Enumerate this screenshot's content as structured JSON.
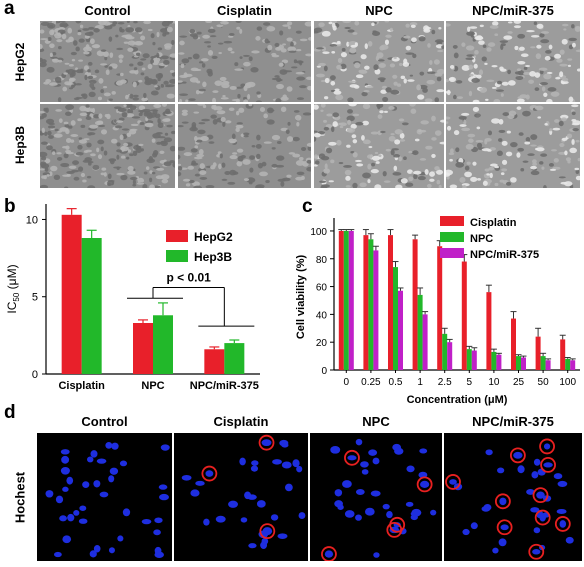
{
  "panels": {
    "a": {
      "label": "a",
      "columns": [
        "Control",
        "Cisplatin",
        "NPC",
        "NPC/miR-375"
      ],
      "rows": [
        "HepG2",
        "Hep3B"
      ]
    },
    "b": {
      "label": "b",
      "annotation": "p < 0.01"
    },
    "c": {
      "label": "c"
    },
    "d": {
      "label": "d",
      "columns": [
        "Control",
        "Cisplatin",
        "NPC",
        "NPC/miR-375"
      ],
      "row": "Hochest"
    }
  },
  "chart_data": [
    {
      "type": "bar",
      "panel": "b",
      "ylabel_main": "IC",
      "ylabel_sub": "50",
      "ylabel_unit": " (μM)",
      "categories": [
        "Cisplatin",
        "NPC",
        "NPC/miR-375"
      ],
      "series": [
        {
          "name": "HepG2",
          "values": [
            10.3,
            3.3,
            1.6
          ],
          "errors": [
            0.4,
            0.2,
            0.15
          ],
          "color": "#e8202a"
        },
        {
          "name": "Hep3B",
          "values": [
            8.8,
            3.8,
            2.0
          ],
          "errors": [
            0.5,
            0.8,
            0.2
          ],
          "color": "#22b82a"
        }
      ],
      "ylim": [
        0,
        11
      ],
      "yticks": [
        "0",
        "5",
        "10"
      ],
      "legend": "top-right"
    },
    {
      "type": "bar",
      "panel": "c",
      "xlabel": "Concentration (μM)",
      "ylabel": "Cell viability (%)",
      "categories": [
        "0",
        "0.25",
        "0.5",
        "1",
        "2.5",
        "5",
        "10",
        "25",
        "50",
        "100"
      ],
      "series": [
        {
          "name": "Cisplatin",
          "values": [
            100,
            97,
            97,
            94,
            89,
            78,
            56,
            37,
            24,
            22
          ],
          "errors": [
            1,
            4,
            4,
            3,
            4,
            5,
            5,
            5,
            6,
            3
          ],
          "color": "#e8202a"
        },
        {
          "name": "NPC",
          "values": [
            100,
            94,
            74,
            54,
            26,
            15,
            13,
            10,
            10,
            8
          ],
          "errors": [
            1,
            4,
            4,
            5,
            4,
            2,
            2,
            1,
            2,
            1
          ],
          "color": "#22b82a"
        },
        {
          "name": "NPC/miR-375",
          "values": [
            100,
            86,
            57,
            40,
            20,
            14,
            11,
            9,
            7,
            7
          ],
          "errors": [
            1,
            3,
            2,
            2,
            2,
            2,
            1,
            1,
            1,
            1
          ],
          "color": "#c020c8"
        }
      ],
      "ylim": [
        0,
        105
      ],
      "yticks": [
        "0",
        "20",
        "40",
        "60",
        "80",
        "100"
      ],
      "legend": "top-right"
    }
  ],
  "colors": {
    "hoechst_bg": "#000000",
    "nucleus": "#1e2ee0",
    "circle": "#e82020"
  }
}
